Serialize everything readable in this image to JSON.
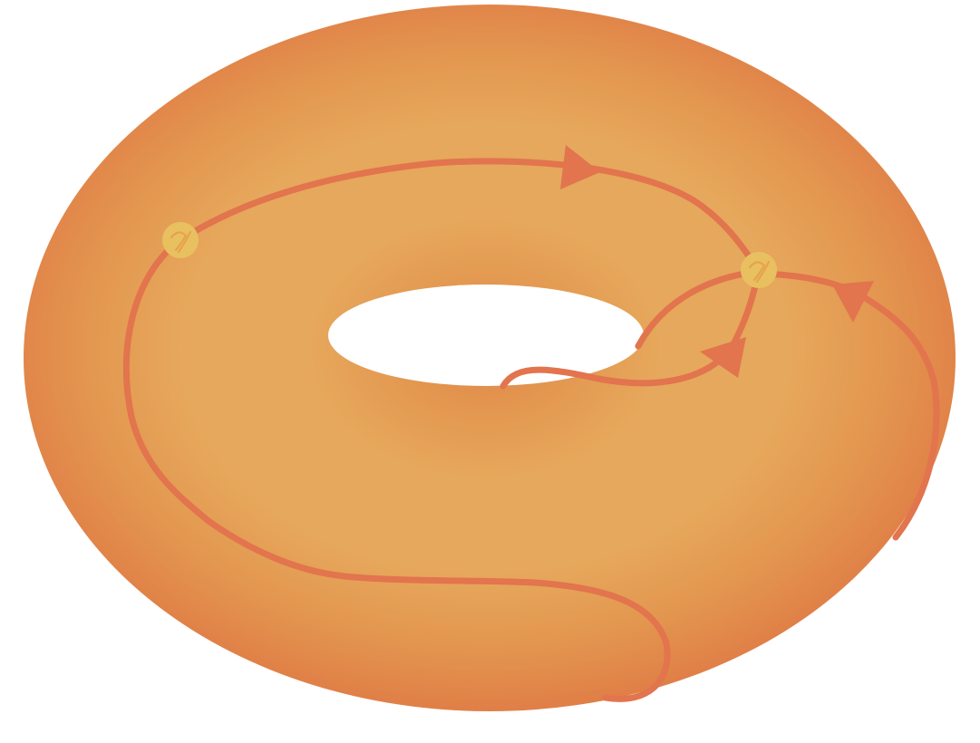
{
  "diagram": {
    "surface": {
      "kind": "torus",
      "colors": {
        "light": "#e6a85c",
        "mid": "#e3964f",
        "dark": "#e07f47",
        "hole_shadow": "#e0844a"
      }
    },
    "paths": {
      "color": "#e2744e",
      "count": 4,
      "arrows": 3
    },
    "points": {
      "color": "#e9c060",
      "count": 2
    }
  }
}
